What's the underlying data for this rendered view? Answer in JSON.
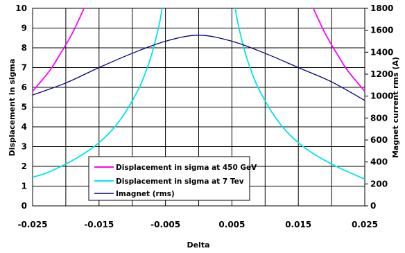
{
  "chart_data": {
    "type": "line",
    "title": "",
    "xlabel": "Delta",
    "ylabel": "Displacement in sigma",
    "y2label": "Magnet current rms (A)",
    "xlim": [
      -0.025,
      0.025
    ],
    "ylim": [
      0,
      10
    ],
    "y2lim": [
      0,
      1800
    ],
    "x_ticks": [
      "-0.025",
      "-0.015",
      "-0.005",
      "0.005",
      "0.015",
      "0.025"
    ],
    "x_tick_values": [
      -0.025,
      -0.015,
      -0.005,
      0.005,
      0.015,
      0.025
    ],
    "y_ticks": [
      "0",
      "1",
      "2",
      "3",
      "4",
      "5",
      "6",
      "7",
      "8",
      "9",
      "10"
    ],
    "y2_ticks": [
      "0",
      "200",
      "400",
      "600",
      "800",
      "1000",
      "1200",
      "1400",
      "1600",
      "1800"
    ],
    "grid": true,
    "legend_position": "bottom-left",
    "series": [
      {
        "name": "Displacement in sigma at 450 GeV",
        "color": "#ff00ff",
        "axis": "left",
        "x": [
          -0.025,
          -0.024,
          -0.023,
          -0.022,
          -0.021,
          -0.02,
          -0.019,
          -0.018,
          -0.017,
          -0.0165,
          0.0165,
          0.017,
          0.018,
          0.019,
          0.02,
          0.021,
          0.022,
          0.023,
          0.024,
          0.025
        ],
        "y": [
          5.8,
          6.2,
          6.6,
          7.05,
          7.6,
          8.15,
          8.75,
          9.45,
          10.2,
          10.6,
          10.6,
          10.2,
          9.45,
          8.75,
          8.15,
          7.6,
          7.05,
          6.6,
          6.2,
          5.8
        ]
      },
      {
        "name": "Displacement in sigma at 7 Tev",
        "color": "#00e6e6",
        "axis": "left",
        "x": [
          -0.025,
          -0.023,
          -0.021,
          -0.019,
          -0.017,
          -0.015,
          -0.013,
          -0.011,
          -0.009,
          -0.008,
          -0.007,
          -0.006,
          -0.0055,
          -0.0045,
          0.0045,
          0.0055,
          0.006,
          0.007,
          0.008,
          0.009,
          0.011,
          0.013,
          0.015,
          0.017,
          0.019,
          0.021,
          0.023,
          0.025
        ],
        "y": [
          1.45,
          1.65,
          1.95,
          2.3,
          2.7,
          3.2,
          3.85,
          4.75,
          5.95,
          6.75,
          7.75,
          9.1,
          10.0,
          12.2,
          12.2,
          10.0,
          9.1,
          7.75,
          6.75,
          5.95,
          4.75,
          3.85,
          3.2,
          2.7,
          2.3,
          1.95,
          1.65,
          1.35
        ]
      },
      {
        "name": "Imagnet (rms)",
        "color": "#000080",
        "axis": "right",
        "x": [
          -0.025,
          -0.02,
          -0.015,
          -0.01,
          -0.005,
          0.0,
          0.005,
          0.01,
          0.015,
          0.02,
          0.025
        ],
        "y": [
          1010,
          1120,
          1260,
          1390,
          1500,
          1555,
          1500,
          1390,
          1260,
          1130,
          960
        ]
      }
    ]
  }
}
